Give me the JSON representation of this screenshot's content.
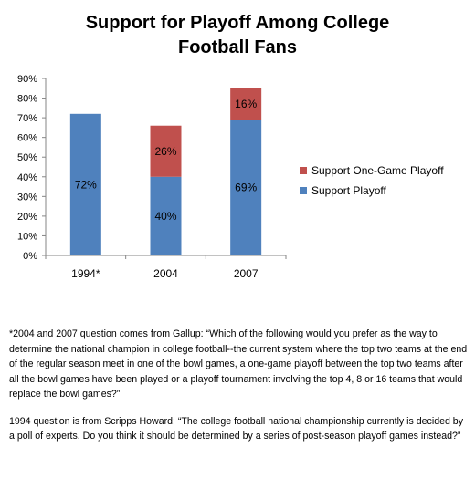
{
  "colors": {
    "support_playoff": "#4F81BD",
    "support_one_game": "#C0504D",
    "axis": "#868686"
  },
  "chart_data": {
    "type": "bar",
    "stacked": true,
    "title_lines": [
      "Support for Playoff Among College",
      "Football Fans"
    ],
    "categories": [
      "1994*",
      "2004",
      "2007"
    ],
    "series": [
      {
        "name": "Support Playoff",
        "values": [
          72,
          40,
          69
        ],
        "labels": [
          "72%",
          "40%",
          "69%"
        ]
      },
      {
        "name": "Support One-Game  Playoff",
        "values": [
          0,
          26,
          16
        ],
        "labels": [
          "",
          "26%",
          "16%"
        ]
      }
    ],
    "yticks": [
      "0%",
      "10%",
      "20%",
      "30%",
      "40%",
      "50%",
      "60%",
      "70%",
      "80%",
      "90%"
    ],
    "ylim": [
      0,
      90
    ],
    "legend_position": "right",
    "grid": false
  },
  "notes": {
    "gallup": "*2004 and 2007 question comes from Gallup: “Which of the following would you prefer as the way to determine the national champion in college football--the current system where the top two teams at the end of the regular season meet in one of the bowl games, a one-game playoff between the top two teams after all the bowl games have been played or a playoff tournament involving the top 4, 8 or 16 teams that would replace the bowl games?”",
    "scripps": "1994 question is from Scripps Howard: “The college football national championship currently is decided by a poll of experts. Do you think it should be determined by a series of post-season playoff games instead?”"
  }
}
